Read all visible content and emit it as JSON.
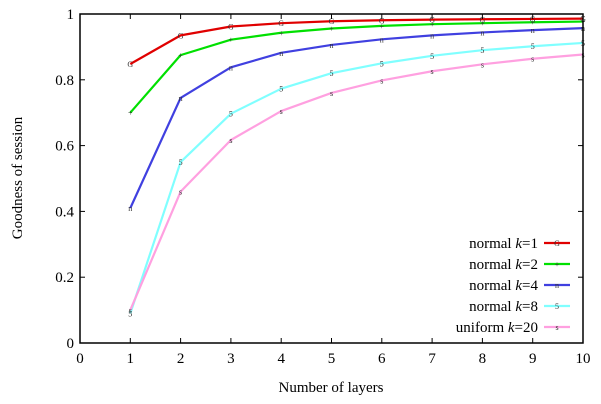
{
  "chart_data": {
    "type": "line",
    "title": "",
    "xlabel": "Number of layers",
    "ylabel": "Goodness of session",
    "xlim": [
      0,
      10
    ],
    "ylim": [
      0,
      1
    ],
    "xticks": [
      "0",
      "1",
      "2",
      "3",
      "4",
      "5",
      "6",
      "7",
      "8",
      "9",
      "10"
    ],
    "yticks": [
      "0",
      "0.2",
      "0.4",
      "0.6",
      "0.8",
      "1"
    ],
    "x": [
      1,
      2,
      3,
      4,
      5,
      6,
      7,
      8,
      9,
      10
    ],
    "grid": false,
    "legend_position": "bottom-right",
    "series": [
      {
        "name": "normal k=1",
        "legend_prefix": "normal ",
        "legend_var": "k",
        "legend_suffix": "=1",
        "color": "#e00000",
        "values": [
          0.848,
          0.935,
          0.962,
          0.972,
          0.978,
          0.981,
          0.983,
          0.984,
          0.985,
          0.986
        ]
      },
      {
        "name": "normal k=2",
        "legend_prefix": "normal ",
        "legend_var": "k",
        "legend_suffix": "=2",
        "color": "#00e000",
        "values": [
          0.7,
          0.875,
          0.922,
          0.943,
          0.956,
          0.964,
          0.969,
          0.972,
          0.975,
          0.977
        ]
      },
      {
        "name": "normal k=4",
        "legend_prefix": "normal ",
        "legend_var": "k",
        "legend_suffix": "=4",
        "color": "#4040e0",
        "values": [
          0.41,
          0.745,
          0.838,
          0.882,
          0.906,
          0.923,
          0.935,
          0.944,
          0.951,
          0.957
        ]
      },
      {
        "name": "normal k=8",
        "legend_prefix": "normal ",
        "legend_var": "k",
        "legend_suffix": "=8",
        "color": "#80ffff",
        "values": [
          0.09,
          0.55,
          0.697,
          0.773,
          0.82,
          0.85,
          0.873,
          0.89,
          0.902,
          0.912
        ]
      },
      {
        "name": "uniform k=20",
        "legend_prefix": "uniform ",
        "legend_var": "k",
        "legend_suffix": "=20",
        "color": "#ffa0e0",
        "values": [
          0.1,
          0.46,
          0.617,
          0.705,
          0.76,
          0.798,
          0.826,
          0.847,
          0.864,
          0.877
        ]
      }
    ],
    "marker_glyphs": [
      "G",
      "+",
      "n",
      "5",
      "s"
    ]
  }
}
